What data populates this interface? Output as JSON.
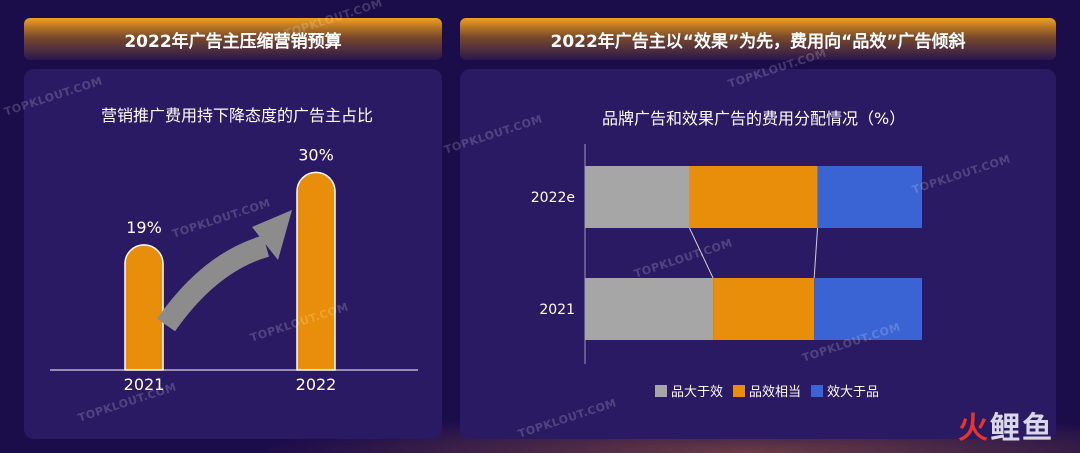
{
  "headers": {
    "left": "2022年广告主压缩营销预算",
    "right": "2022年广告主以“效果”为先，费用向“品效”广告倾斜"
  },
  "watermark": "TOPKLOUT.COM",
  "brand": {
    "part1": "火",
    "part2": "鲤鱼"
  },
  "colors": {
    "background": "#1b0c4a",
    "panel": "#2a1a63",
    "orange": "#e98e0b",
    "gray": "#a6a6a6",
    "blue": "#3a63d4",
    "arrow": "#8c8c8c"
  },
  "chart_data": [
    {
      "type": "bar",
      "title": "营销推广费用持下降态度的广告主占比",
      "categories": [
        "2021",
        "2022"
      ],
      "values": [
        19,
        30
      ],
      "value_labels": [
        "19%",
        "30%"
      ],
      "ylim": [
        0,
        34
      ],
      "grid": false,
      "annotation": "upward arrow from 2021 to 2022"
    },
    {
      "type": "bar",
      "orientation": "horizontal",
      "stacked": true,
      "title": "品牌广告和效果广告的费用分配情况（%）",
      "categories": [
        "2022e",
        "2021"
      ],
      "series": [
        {
          "name": "品大于效",
          "values": [
            31,
            38
          ]
        },
        {
          "name": "品效相当",
          "values": [
            38,
            30
          ]
        },
        {
          "name": "效大于品",
          "values": [
            31,
            32
          ]
        }
      ],
      "xlim": [
        0,
        100
      ],
      "legend": "bottom",
      "grid": false
    }
  ]
}
